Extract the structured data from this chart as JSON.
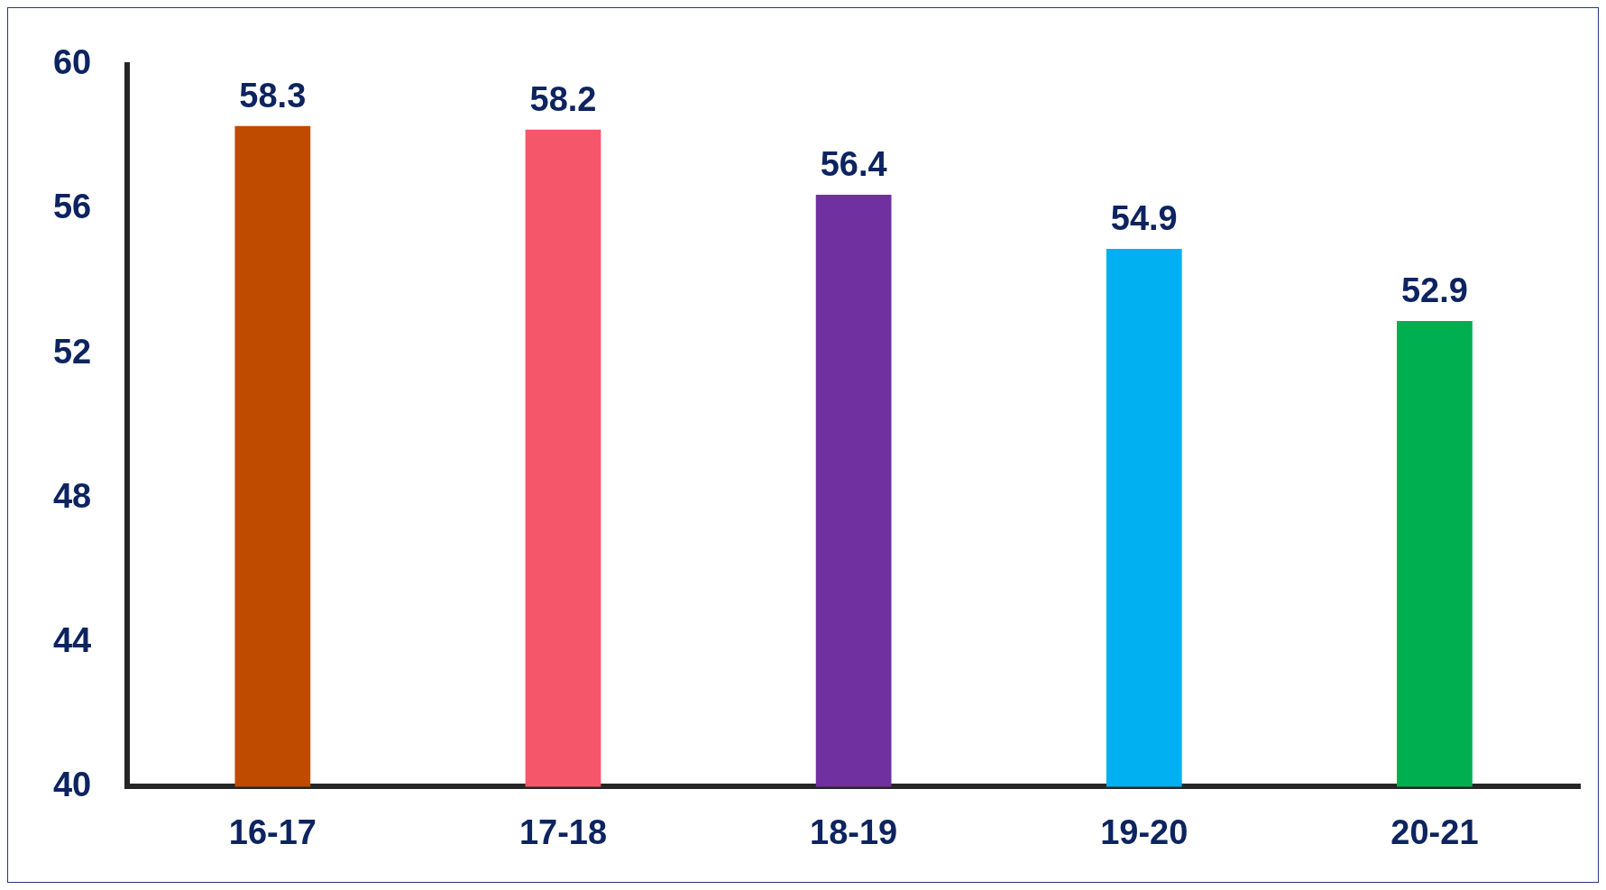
{
  "chart_data": {
    "type": "bar",
    "categories": [
      "16-17",
      "17-18",
      "18-19",
      "19-20",
      "20-21"
    ],
    "values": [
      58.3,
      58.2,
      56.4,
      54.9,
      52.9
    ],
    "colors": [
      "#be4b00",
      "#f5566a",
      "#7030a0",
      "#00b0f0",
      "#00b050"
    ],
    "ylim": [
      40,
      60
    ],
    "yticks": [
      40,
      44,
      48,
      52,
      56,
      60
    ],
    "data_labels": true,
    "grid": false,
    "legend": false
  }
}
